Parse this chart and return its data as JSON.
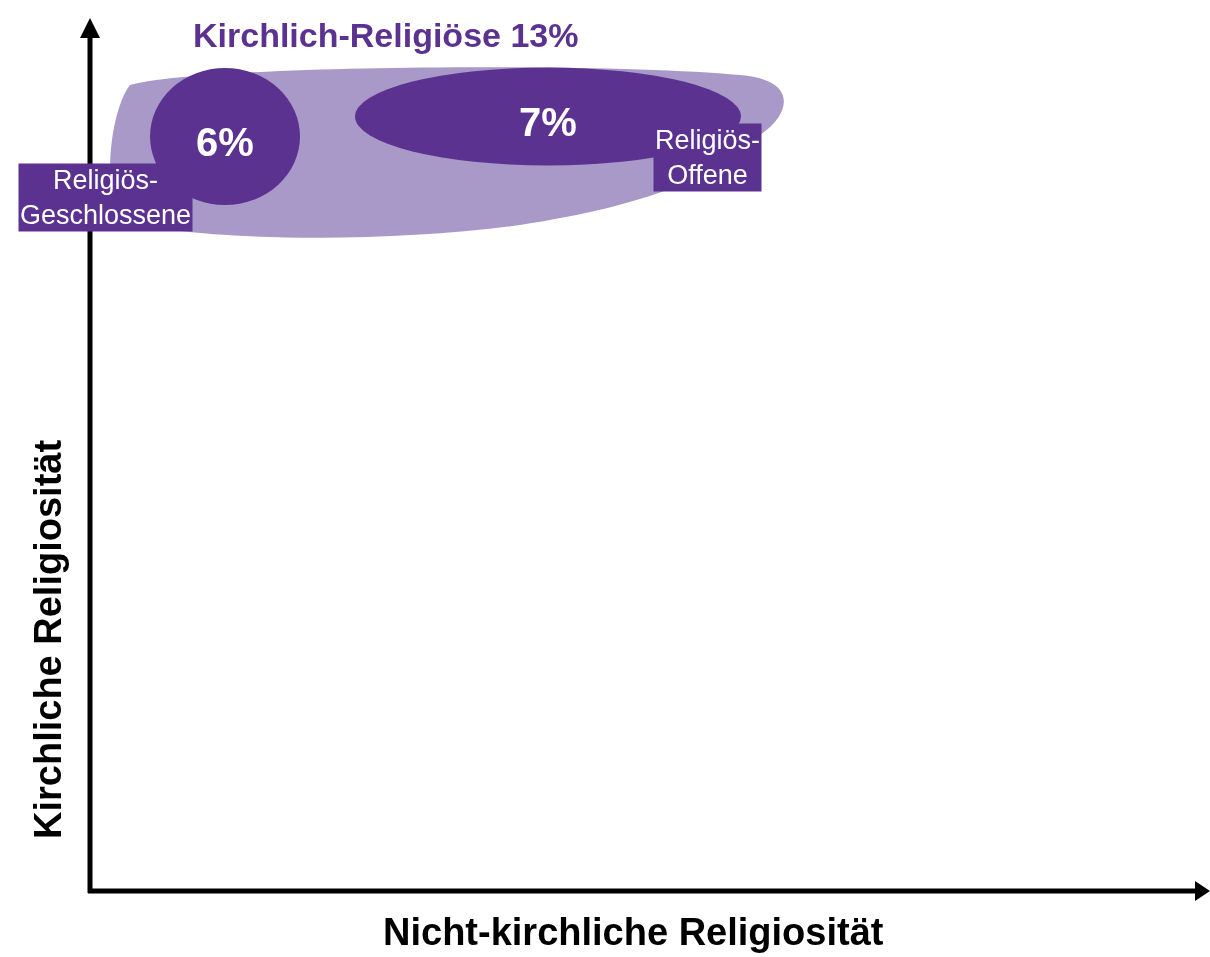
{
  "chart_data": {
    "type": "other",
    "title": "Kirchlich-Religiöse 13%",
    "xlabel": "Nicht-kirchliche Religiosität",
    "ylabel": "Kirchliche Religiosität",
    "categories": [
      "Religiös-Geschlossene",
      "Religiös-Offene"
    ],
    "values": [
      6,
      7
    ],
    "value_labels": [
      "6%",
      "7%"
    ]
  }
}
